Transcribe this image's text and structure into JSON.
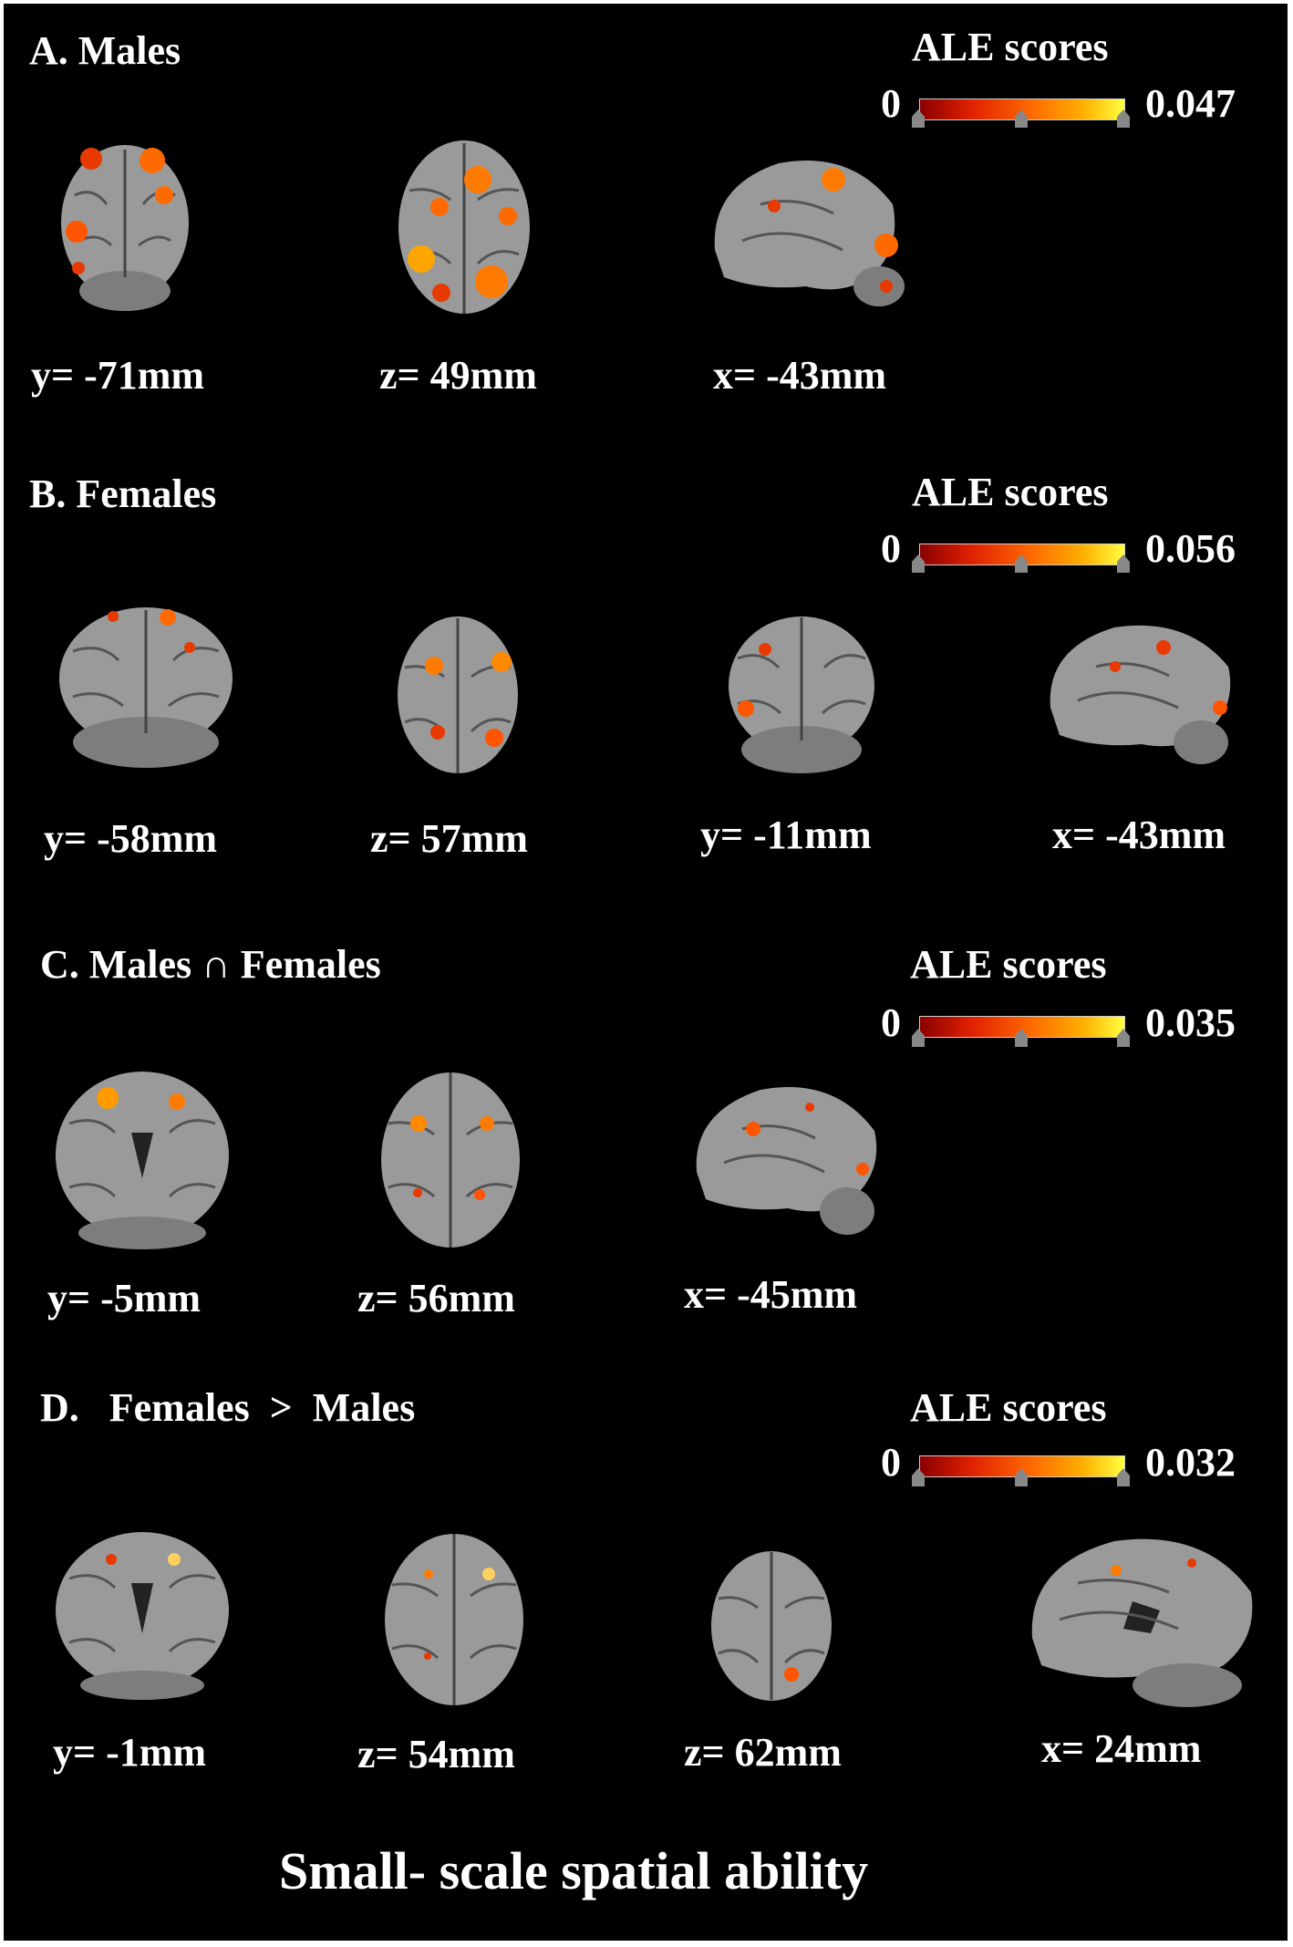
{
  "panels": [
    {
      "title": "A. Males",
      "ale_label": "ALE scores",
      "min": "0",
      "max": "0.047",
      "slices": [
        {
          "label": "y= -71mm",
          "view": "coronal-posterior"
        },
        {
          "label": "z= 49mm",
          "view": "axial"
        },
        {
          "label": "x= -43mm",
          "view": "sagittal"
        }
      ]
    },
    {
      "title": "B. Females",
      "ale_label": "ALE scores",
      "min": "0",
      "max": "0.056",
      "slices": [
        {
          "label": "y= -58mm",
          "view": "coronal-posterior"
        },
        {
          "label": "z= 57mm",
          "view": "axial"
        },
        {
          "label": "y= -11mm",
          "view": "coronal-posterior"
        },
        {
          "label": "x= -43mm",
          "view": "sagittal"
        }
      ]
    },
    {
      "title": "C. Males ∩ Females",
      "ale_label": "ALE scores",
      "min": "0",
      "max": "0.035",
      "slices": [
        {
          "label": "y= -5mm",
          "view": "coronal"
        },
        {
          "label": "z= 56mm",
          "view": "axial"
        },
        {
          "label": "x= -45mm",
          "view": "sagittal"
        }
      ]
    },
    {
      "title": "D.   Females  >  Males",
      "ale_label": "ALE scores",
      "min": "0",
      "max": "0.032",
      "slices": [
        {
          "label": "y= -1mm",
          "view": "coronal"
        },
        {
          "label": "z= 54mm",
          "view": "axial"
        },
        {
          "label": "z= 62mm",
          "view": "axial"
        },
        {
          "label": "x= 24mm",
          "view": "sagittal-medial"
        }
      ]
    }
  ],
  "caption": "Small- scale spatial ability",
  "colors": {
    "background": "#000000",
    "text": "#ffffff",
    "cmap_low": "#8a0000",
    "cmap_high": "#ffff40"
  }
}
